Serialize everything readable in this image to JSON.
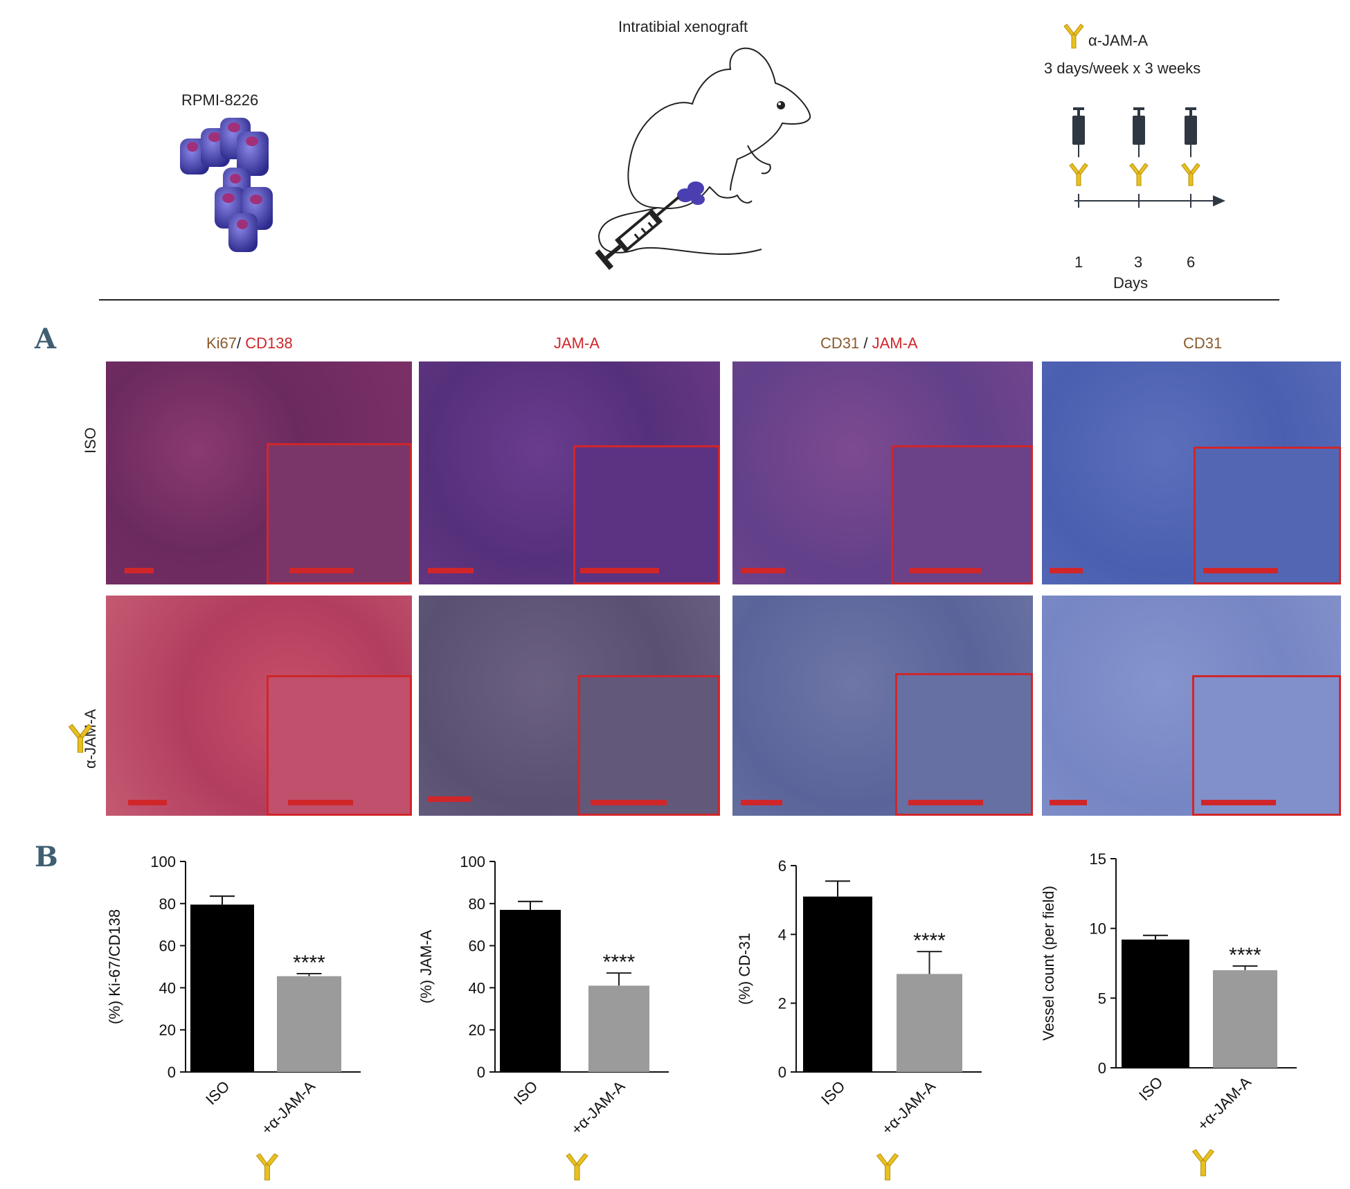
{
  "schematic": {
    "cell_line": "RPMI-8226",
    "model": "Intratibial xenograft",
    "treatment_name": "α-JAM-A",
    "schedule": "3 days/week x 3 weeks",
    "days": [
      "1",
      "3",
      "6"
    ],
    "days_label": "Days"
  },
  "panel_a": {
    "letter": "A",
    "columns": [
      {
        "part1": "Ki67",
        "sep": "/ ",
        "part2": "CD138"
      },
      {
        "part1": "",
        "sep": "",
        "part2": "JAM-A"
      },
      {
        "part1": "CD31",
        "sep": " / ",
        "part2": "JAM-A"
      },
      {
        "part1": "CD31",
        "sep": "",
        "part2": ""
      }
    ],
    "rows": [
      "ISO",
      "α-JAM-A"
    ]
  },
  "panel_b": {
    "letter": "B"
  },
  "colors": {
    "iso_bar": "#000000",
    "treated_bar": "#9b9b9b",
    "inset_border": "#d0262a",
    "antibody": "#e8c020",
    "panel_letter": "#3f5e72"
  },
  "chart_data": [
    {
      "type": "bar",
      "categories": [
        "ISO",
        "+α-JAM-A"
      ],
      "values": [
        79.5,
        45.5
      ],
      "errors": [
        4,
        1.2
      ],
      "ylabel": "(%) Ki-67/CD138",
      "ylim": [
        0,
        100
      ],
      "yticks": [
        "0",
        "20",
        "40",
        "60",
        "80",
        "100"
      ],
      "annotation": "****"
    },
    {
      "type": "bar",
      "categories": [
        "ISO",
        "+α-JAM-A"
      ],
      "values": [
        77,
        41
      ],
      "errors": [
        4,
        6
      ],
      "ylabel": "(%) JAM-A",
      "ylim": [
        0,
        100
      ],
      "yticks": [
        "0",
        "20",
        "40",
        "60",
        "80",
        "100"
      ],
      "annotation": "****"
    },
    {
      "type": "bar",
      "categories": [
        "ISO",
        "+α-JAM-A"
      ],
      "values": [
        5.1,
        2.85
      ],
      "errors": [
        0.45,
        0.65
      ],
      "ylabel": "(%) CD-31",
      "ylim": [
        0,
        6
      ],
      "yticks": [
        "0",
        "2",
        "4",
        "6"
      ],
      "annotation": "****"
    },
    {
      "type": "bar",
      "categories": [
        "ISO",
        "+α-JAM-A"
      ],
      "values": [
        9.2,
        7.0
      ],
      "errors": [
        0.3,
        0.3
      ],
      "ylabel": "Vessel count (per field)",
      "ylim": [
        0,
        15
      ],
      "yticks": [
        "0",
        "5",
        "10",
        "15"
      ],
      "annotation": "****"
    }
  ]
}
